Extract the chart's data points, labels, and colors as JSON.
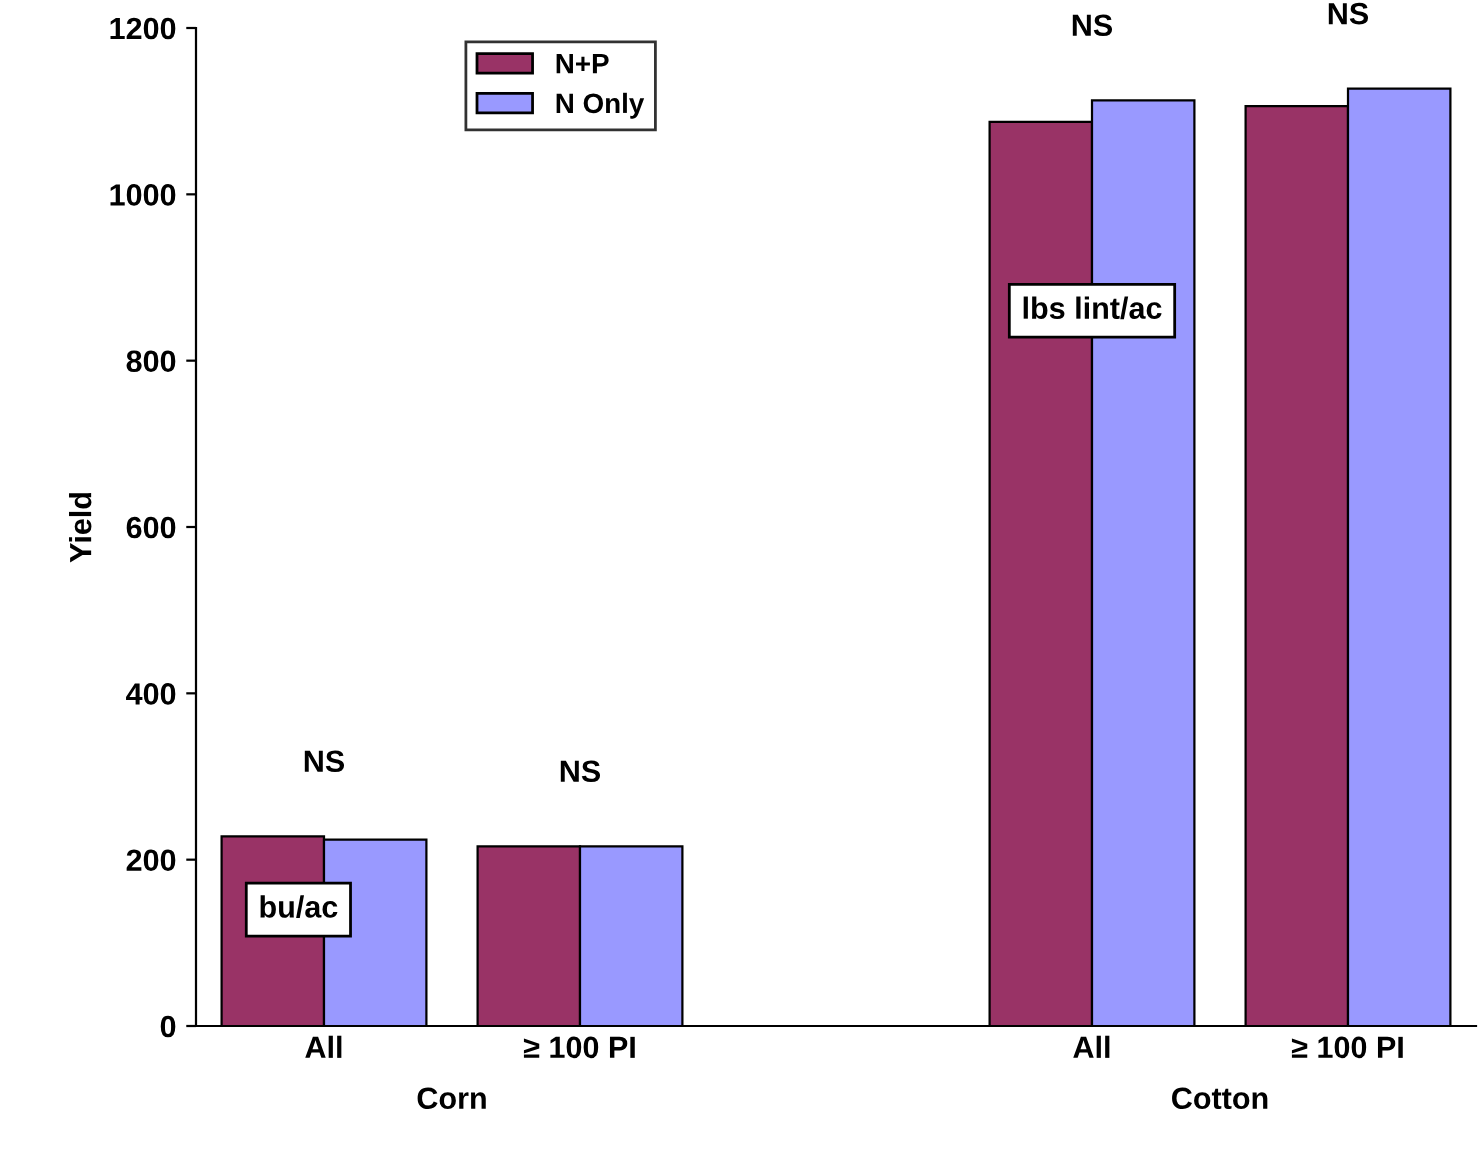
{
  "chart_data": {
    "type": "bar",
    "ylabel": "Yield",
    "categories": [
      "All",
      "≥ 100 PI",
      null,
      "All",
      "≥ 100 PI"
    ],
    "series": [
      {
        "name": "N+P",
        "color": "#993366",
        "values": [
          228,
          216,
          null,
          1087,
          1106
        ]
      },
      {
        "name": "N Only",
        "color": "#9999ff",
        "values": [
          224,
          216,
          null,
          1113,
          1127
        ]
      }
    ],
    "ylim": [
      0,
      1200
    ],
    "yticks": [
      0,
      200,
      400,
      600,
      800,
      1000,
      1200
    ],
    "grid": false,
    "legend": "top left",
    "annotations": [
      "NS",
      "NS",
      "NS",
      "NS",
      "bu/ac",
      "lbs lint/ac",
      "Corn",
      "Cotton"
    ]
  }
}
